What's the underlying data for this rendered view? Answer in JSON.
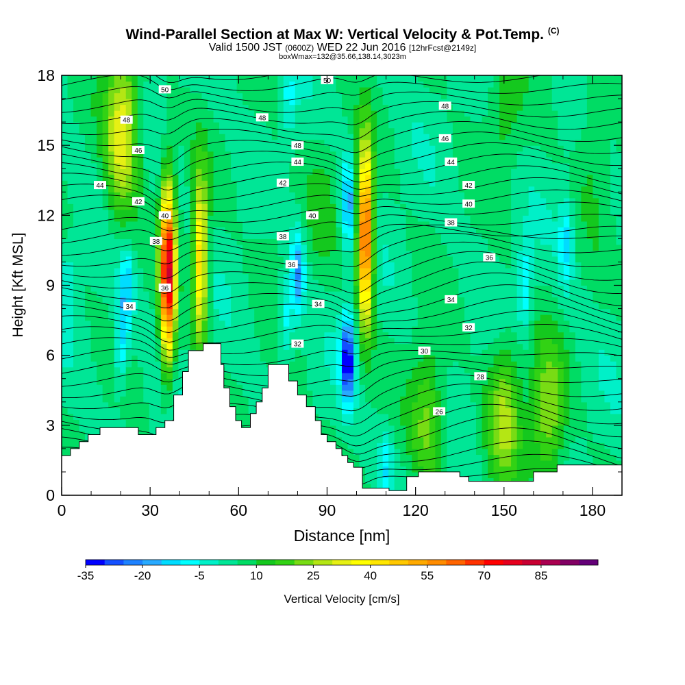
{
  "chart_data": {
    "type": "heatmap",
    "title": "Wind-Parallel Section at Max W: Vertical Velocity & Pot.Temp.",
    "title_mark": "(C)",
    "subtitle": {
      "valid": "Valid 1500 JST",
      "utc": "(0600Z)",
      "date": "WED 22 Jun 2016",
      "fcst": "[12hrFcst@2149z]"
    },
    "box_info": "boxWmax=132@35.66,138.14,3023m",
    "xlabel": "Distance [nm]",
    "ylabel": "Height [Kft MSL]",
    "xlim": [
      0,
      190
    ],
    "ylim": [
      0,
      18
    ],
    "x_ticks": [
      0,
      30,
      60,
      90,
      120,
      150,
      180
    ],
    "y_ticks": [
      0,
      3,
      6,
      9,
      12,
      15,
      18
    ],
    "colorbar": {
      "label": "Vertical Velocity [cm/s]",
      "min": -35,
      "step": 5,
      "tick_values": [
        -35,
        -20,
        -5,
        10,
        25,
        40,
        55,
        70,
        85
      ],
      "tick_labels": [
        "-35",
        "-20",
        "-5",
        "10",
        "25",
        "40",
        "55",
        "70",
        "85"
      ],
      "colors": [
        "#0000ff",
        "#1450ff",
        "#1e82ff",
        "#28aaff",
        "#00dcff",
        "#00ffff",
        "#00f0c8",
        "#00e696",
        "#00dc64",
        "#14c81e",
        "#32d214",
        "#78dc14",
        "#b4e614",
        "#e6f014",
        "#ffff00",
        "#ffe600",
        "#ffc800",
        "#ffaa00",
        "#ff8c00",
        "#ff6400",
        "#ff3200",
        "#ff0000",
        "#e6001e",
        "#c80032",
        "#aa0050",
        "#820064",
        "#640078"
      ]
    },
    "updraft_cores": [
      {
        "x": 36,
        "z": 9.6,
        "w": 80
      },
      {
        "x": 47,
        "z": 10.1,
        "w": 45
      },
      {
        "x": 103,
        "z": 11.2,
        "w": 70
      },
      {
        "x": 21,
        "z": 16.5,
        "w": 25
      },
      {
        "x": 20,
        "z": 14.0,
        "w": 18
      },
      {
        "x": 72,
        "z": 11.0,
        "w": 8
      },
      {
        "x": 88,
        "z": 13.0,
        "w": 10
      },
      {
        "x": 124,
        "z": 3.2,
        "w": 22
      },
      {
        "x": 150,
        "z": 3.5,
        "w": 25
      },
      {
        "x": 165,
        "z": 3.4,
        "w": 25
      },
      {
        "x": 150,
        "z": 16.5,
        "w": 12
      },
      {
        "x": 180,
        "z": 15.0,
        "w": 12
      }
    ],
    "downdraft_cores": [
      {
        "x": 97,
        "z": 5.8,
        "w": -35
      },
      {
        "x": 97,
        "z": 12.5,
        "w": -20
      },
      {
        "x": 80,
        "z": 9.5,
        "w": -20
      },
      {
        "x": 22,
        "z": 8.8,
        "w": -15
      },
      {
        "x": 20,
        "z": 6.5,
        "w": -12
      },
      {
        "x": 157,
        "z": 8.9,
        "w": -12
      },
      {
        "x": 171,
        "z": 10.8,
        "w": -12
      },
      {
        "x": 2,
        "z": 9.0,
        "w": -5
      },
      {
        "x": 76,
        "z": 7.5,
        "w": -10
      },
      {
        "x": 110,
        "z": 1.2,
        "w": -8
      },
      {
        "x": 77,
        "z": 17.0,
        "w": -6
      }
    ],
    "theta_label_values": [
      "26",
      "28",
      "30",
      "32",
      "34",
      "36",
      "38",
      "40",
      "42",
      "44",
      "46",
      "48",
      "50"
    ],
    "isentrope_labels": [
      {
        "text": "50",
        "x": 35,
        "z": 17.4
      },
      {
        "text": "48",
        "x": 22,
        "z": 16.1
      },
      {
        "text": "46",
        "x": 26,
        "z": 14.8
      },
      {
        "text": "44",
        "x": 13,
        "z": 13.3
      },
      {
        "text": "42",
        "x": 26,
        "z": 12.6
      },
      {
        "text": "40",
        "x": 35,
        "z": 12.0
      },
      {
        "text": "38",
        "x": 32,
        "z": 10.9
      },
      {
        "text": "36",
        "x": 35,
        "z": 8.9
      },
      {
        "text": "34",
        "x": 23,
        "z": 8.1
      },
      {
        "text": "50",
        "x": 90,
        "z": 17.8
      },
      {
        "text": "48",
        "x": 68,
        "z": 16.2
      },
      {
        "text": "48",
        "x": 80,
        "z": 15.0
      },
      {
        "text": "44",
        "x": 80,
        "z": 14.3
      },
      {
        "text": "42",
        "x": 75,
        "z": 13.4
      },
      {
        "text": "40",
        "x": 85,
        "z": 12.0
      },
      {
        "text": "38",
        "x": 75,
        "z": 11.1
      },
      {
        "text": "36",
        "x": 78,
        "z": 9.9
      },
      {
        "text": "34",
        "x": 87,
        "z": 8.2
      },
      {
        "text": "32",
        "x": 80,
        "z": 6.5
      },
      {
        "text": "48",
        "x": 130,
        "z": 16.7
      },
      {
        "text": "46",
        "x": 130,
        "z": 15.3
      },
      {
        "text": "44",
        "x": 132,
        "z": 14.3
      },
      {
        "text": "42",
        "x": 138,
        "z": 13.3
      },
      {
        "text": "40",
        "x": 138,
        "z": 12.5
      },
      {
        "text": "38",
        "x": 132,
        "z": 11.7
      },
      {
        "text": "36",
        "x": 145,
        "z": 10.2
      },
      {
        "text": "34",
        "x": 132,
        "z": 8.4
      },
      {
        "text": "32",
        "x": 138,
        "z": 7.2
      },
      {
        "text": "30",
        "x": 123,
        "z": 6.2
      },
      {
        "text": "28",
        "x": 142,
        "z": 5.1
      },
      {
        "text": "26",
        "x": 128,
        "z": 3.6
      }
    ],
    "terrain": [
      [
        0,
        1.7
      ],
      [
        3,
        1.7
      ],
      [
        3,
        2.0
      ],
      [
        6,
        2.0
      ],
      [
        6,
        2.3
      ],
      [
        9,
        2.3
      ],
      [
        9,
        2.6
      ],
      [
        13,
        2.6
      ],
      [
        13,
        2.9
      ],
      [
        26,
        2.9
      ],
      [
        26,
        2.6
      ],
      [
        32,
        2.6
      ],
      [
        32,
        2.9
      ],
      [
        35,
        2.9
      ],
      [
        35,
        3.2
      ],
      [
        38,
        3.2
      ],
      [
        38,
        4.3
      ],
      [
        41,
        4.3
      ],
      [
        41,
        5.3
      ],
      [
        43,
        5.3
      ],
      [
        43,
        6.2
      ],
      [
        48,
        6.2
      ],
      [
        48,
        6.5
      ],
      [
        54,
        6.5
      ],
      [
        54,
        5.6
      ],
      [
        55,
        5.6
      ],
      [
        55,
        4.6
      ],
      [
        57,
        4.6
      ],
      [
        57,
        3.8
      ],
      [
        59,
        3.8
      ],
      [
        59,
        3.2
      ],
      [
        61,
        3.2
      ],
      [
        61,
        2.9
      ],
      [
        64,
        2.9
      ],
      [
        64,
        3.5
      ],
      [
        66,
        3.5
      ],
      [
        66,
        4.0
      ],
      [
        68,
        4.0
      ],
      [
        68,
        4.6
      ],
      [
        70,
        4.6
      ],
      [
        70,
        5.6
      ],
      [
        77,
        5.6
      ],
      [
        77,
        4.9
      ],
      [
        80,
        4.9
      ],
      [
        80,
        4.3
      ],
      [
        83,
        4.3
      ],
      [
        83,
        3.8
      ],
      [
        86,
        3.8
      ],
      [
        86,
        3.2
      ],
      [
        88,
        3.2
      ],
      [
        88,
        2.6
      ],
      [
        90,
        2.6
      ],
      [
        90,
        2.3
      ],
      [
        93,
        2.3
      ],
      [
        93,
        2.0
      ],
      [
        95,
        2.0
      ],
      [
        95,
        1.7
      ],
      [
        97,
        1.7
      ],
      [
        97,
        1.4
      ],
      [
        99,
        1.4
      ],
      [
        99,
        1.2
      ],
      [
        102,
        1.2
      ],
      [
        102,
        0.3
      ],
      [
        111,
        0.3
      ],
      [
        111,
        0.2
      ],
      [
        117,
        0.2
      ],
      [
        117,
        0.8
      ],
      [
        121,
        0.8
      ],
      [
        121,
        1.0
      ],
      [
        135,
        1.0
      ],
      [
        135,
        0.8
      ],
      [
        138,
        0.8
      ],
      [
        138,
        0.6
      ],
      [
        160,
        0.6
      ],
      [
        160,
        1.0
      ],
      [
        168,
        1.0
      ],
      [
        168,
        1.3
      ],
      [
        190,
        1.3
      ],
      [
        190,
        0
      ]
    ]
  }
}
